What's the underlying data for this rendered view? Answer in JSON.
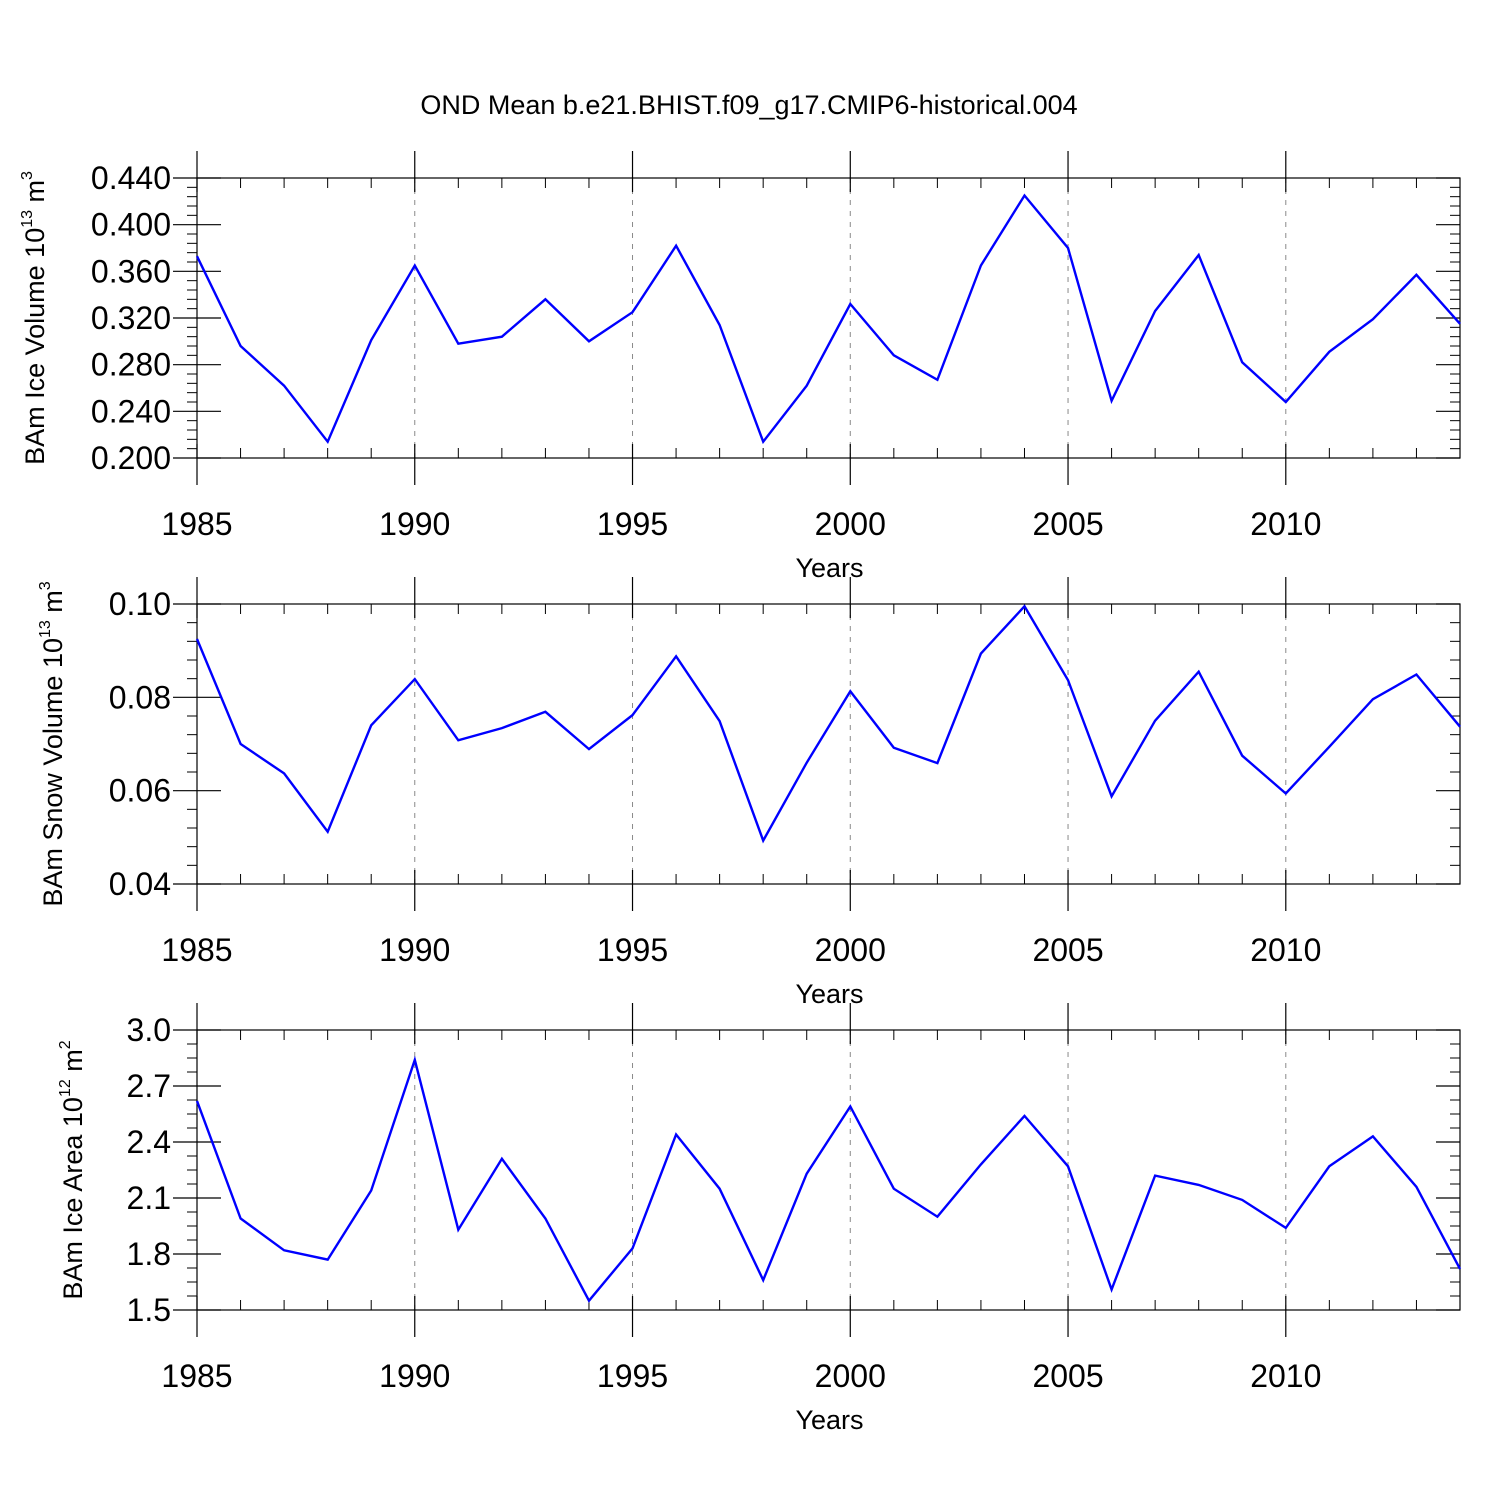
{
  "figure": {
    "title": "OND Mean b.e21.BHIST.f09_g17.CMIP6-historical.004"
  },
  "chart_data": [
    {
      "type": "line",
      "title": "OND Mean b.e21.BHIST.f09_g17.CMIP6-historical.004",
      "xlabel": "Years",
      "ylabel": "BAm Ice Volume 10^13 m^3",
      "ylabel_main": "BAm Ice Volume 10",
      "ylabel_exp": "13",
      "ylabel_unit": " m",
      "ylabel_unit_exp": "3",
      "series_color": "#0000ff",
      "grid": "vertical dashed at major x ticks",
      "xlim": [
        1985,
        2014
      ],
      "ylim": [
        0.2,
        0.44
      ],
      "x_major_ticks": [
        1985,
        1990,
        1995,
        2000,
        2005,
        2010
      ],
      "x_tick_labels": [
        "1985",
        "1990",
        "1995",
        "2000",
        "2005",
        "2010"
      ],
      "y_major_ticks": [
        0.2,
        0.24,
        0.28,
        0.32,
        0.36,
        0.4,
        0.44
      ],
      "y_tick_labels": [
        "0.200",
        "0.240",
        "0.280",
        "0.320",
        "0.360",
        "0.400",
        "0.440"
      ],
      "y_minor_step": 0.008,
      "series": [
        {
          "name": "BAm Ice Volume",
          "x": [
            1985,
            1986,
            1987,
            1988,
            1989,
            1990,
            1991,
            1992,
            1993,
            1994,
            1995,
            1996,
            1997,
            1998,
            1999,
            2000,
            2001,
            2002,
            2003,
            2004,
            2005,
            2006,
            2007,
            2008,
            2009,
            2010,
            2011,
            2012,
            2013,
            2014
          ],
          "values": [
            0.373,
            0.296,
            0.262,
            0.214,
            0.301,
            0.365,
            0.298,
            0.304,
            0.336,
            0.3,
            0.325,
            0.382,
            0.314,
            0.214,
            0.262,
            0.332,
            0.288,
            0.267,
            0.365,
            0.425,
            0.38,
            0.249,
            0.326,
            0.374,
            0.282,
            0.248,
            0.291,
            0.319,
            0.357,
            0.315
          ]
        }
      ]
    },
    {
      "type": "line",
      "title": "",
      "xlabel": "Years",
      "ylabel": "BAm Snow Volume 10^13 m^3",
      "ylabel_main": "BAm Snow Volume 10",
      "ylabel_exp": "13",
      "ylabel_unit": " m",
      "ylabel_unit_exp": "3",
      "series_color": "#0000ff",
      "grid": "vertical dashed at major x ticks",
      "xlim": [
        1985,
        2014
      ],
      "ylim": [
        0.04,
        0.1
      ],
      "x_major_ticks": [
        1985,
        1990,
        1995,
        2000,
        2005,
        2010
      ],
      "x_tick_labels": [
        "1985",
        "1990",
        "1995",
        "2000",
        "2005",
        "2010"
      ],
      "y_major_ticks": [
        0.04,
        0.06,
        0.08,
        0.1
      ],
      "y_tick_labels": [
        "0.04",
        "0.06",
        "0.08",
        "0.10"
      ],
      "y_minor_step": 0.004,
      "series": [
        {
          "name": "BAm Snow Volume",
          "x": [
            1985,
            1986,
            1987,
            1988,
            1989,
            1990,
            1991,
            1992,
            1993,
            1994,
            1995,
            1996,
            1997,
            1998,
            1999,
            2000,
            2001,
            2002,
            2003,
            2004,
            2005,
            2006,
            2007,
            2008,
            2009,
            2010,
            2011,
            2012,
            2013,
            2014
          ],
          "values": [
            0.0925,
            0.07,
            0.0637,
            0.0512,
            0.074,
            0.0839,
            0.0708,
            0.0734,
            0.0769,
            0.0689,
            0.0762,
            0.0888,
            0.0749,
            0.0493,
            0.066,
            0.0813,
            0.0692,
            0.0659,
            0.0894,
            0.0995,
            0.0837,
            0.0588,
            0.075,
            0.0855,
            0.0675,
            0.0594,
            0.0694,
            0.0796,
            0.0849,
            0.0737
          ]
        }
      ]
    },
    {
      "type": "line",
      "title": "",
      "xlabel": "Years",
      "ylabel": "BAm Ice Area 10^12 m^2",
      "ylabel_main": "BAm Ice Area 10",
      "ylabel_exp": "12",
      "ylabel_unit": " m",
      "ylabel_unit_exp": "2",
      "series_color": "#0000ff",
      "grid": "vertical dashed at major x ticks",
      "xlim": [
        1985,
        2014
      ],
      "ylim": [
        1.5,
        3.0
      ],
      "x_major_ticks": [
        1985,
        1990,
        1995,
        2000,
        2005,
        2010
      ],
      "x_tick_labels": [
        "1985",
        "1990",
        "1995",
        "2000",
        "2005",
        "2010"
      ],
      "y_major_ticks": [
        1.5,
        1.8,
        2.1,
        2.4,
        2.7,
        3.0
      ],
      "y_tick_labels": [
        "1.5",
        "1.8",
        "2.1",
        "2.4",
        "2.7",
        "3.0"
      ],
      "y_minor_step": 0.075,
      "series": [
        {
          "name": "BAm Ice Area",
          "x": [
            1985,
            1986,
            1987,
            1988,
            1989,
            1990,
            1991,
            1992,
            1993,
            1994,
            1995,
            1996,
            1997,
            1998,
            1999,
            2000,
            2001,
            2002,
            2003,
            2004,
            2005,
            2006,
            2007,
            2008,
            2009,
            2010,
            2011,
            2012,
            2013,
            2014
          ],
          "values": [
            2.62,
            1.99,
            1.82,
            1.77,
            2.14,
            2.84,
            1.93,
            2.31,
            1.99,
            1.55,
            1.83,
            2.44,
            2.15,
            1.66,
            2.23,
            2.59,
            2.15,
            2.0,
            2.28,
            2.54,
            2.27,
            1.61,
            2.22,
            2.17,
            2.09,
            1.94,
            2.27,
            2.43,
            2.16,
            1.72
          ]
        }
      ]
    }
  ]
}
